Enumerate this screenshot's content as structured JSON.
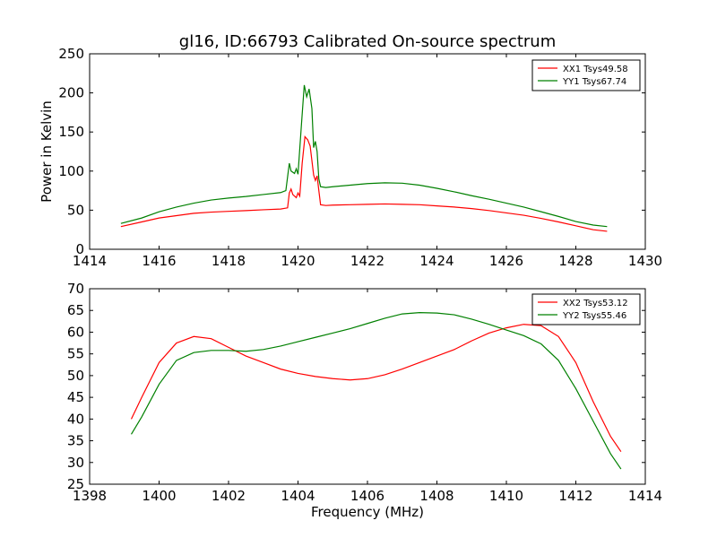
{
  "chart_data": [
    {
      "type": "line",
      "title": "gl16, ID:66793 Calibrated On-source spectrum",
      "xlabel": "",
      "ylabel": "Power in Kelvin",
      "xlim": [
        1414,
        1430
      ],
      "ylim": [
        0,
        250
      ],
      "xticks": [
        "1414",
        "1416",
        "1418",
        "1420",
        "1422",
        "1424",
        "1426",
        "1428",
        "1430"
      ],
      "yticks": [
        "0",
        "50",
        "100",
        "150",
        "200",
        "250"
      ],
      "grid": false,
      "legend_position": "top-right",
      "series": [
        {
          "name": "XX1 Tsys49.58",
          "color": "#ff0000",
          "points": [
            [
              1414.9,
              29
            ],
            [
              1415.5,
              35
            ],
            [
              1416,
              40
            ],
            [
              1416.5,
              43
            ],
            [
              1417,
              46
            ],
            [
              1417.5,
              47.5
            ],
            [
              1418,
              48.5
            ],
            [
              1418.5,
              49.5
            ],
            [
              1419,
              50.5
            ],
            [
              1419.5,
              51.5
            ],
            [
              1419.7,
              53
            ],
            [
              1419.75,
              72
            ],
            [
              1419.8,
              77
            ],
            [
              1419.85,
              70
            ],
            [
              1419.95,
              66
            ],
            [
              1420.0,
              72
            ],
            [
              1420.05,
              68
            ],
            [
              1420.12,
              110
            ],
            [
              1420.2,
              144
            ],
            [
              1420.28,
              140
            ],
            [
              1420.35,
              132
            ],
            [
              1420.45,
              95
            ],
            [
              1420.5,
              88
            ],
            [
              1420.55,
              94
            ],
            [
              1420.6,
              75
            ],
            [
              1420.65,
              57
            ],
            [
              1420.8,
              56
            ],
            [
              1421,
              56.5
            ],
            [
              1421.5,
              57
            ],
            [
              1422,
              57.5
            ],
            [
              1422.5,
              58
            ],
            [
              1423,
              57.5
            ],
            [
              1423.5,
              57
            ],
            [
              1424,
              55.5
            ],
            [
              1424.5,
              54
            ],
            [
              1425,
              52
            ],
            [
              1425.5,
              49.5
            ],
            [
              1426,
              46.5
            ],
            [
              1426.5,
              43.5
            ],
            [
              1427,
              39.5
            ],
            [
              1427.5,
              35
            ],
            [
              1428,
              30
            ],
            [
              1428.5,
              25
            ],
            [
              1428.9,
              23
            ]
          ]
        },
        {
          "name": "YY1 Tsys67.74",
          "color": "#008000",
          "points": [
            [
              1414.9,
              33
            ],
            [
              1415.5,
              40
            ],
            [
              1416,
              48
            ],
            [
              1416.5,
              54
            ],
            [
              1417,
              59
            ],
            [
              1417.5,
              63
            ],
            [
              1418,
              65.5
            ],
            [
              1418.5,
              67.5
            ],
            [
              1419,
              70
            ],
            [
              1419.5,
              72.5
            ],
            [
              1419.65,
              75
            ],
            [
              1419.75,
              110
            ],
            [
              1419.8,
              100
            ],
            [
              1419.9,
              97
            ],
            [
              1419.95,
              103
            ],
            [
              1420.0,
              96
            ],
            [
              1420.1,
              160
            ],
            [
              1420.18,
              210
            ],
            [
              1420.25,
              195
            ],
            [
              1420.32,
              205
            ],
            [
              1420.4,
              180
            ],
            [
              1420.45,
              130
            ],
            [
              1420.5,
              138
            ],
            [
              1420.55,
              125
            ],
            [
              1420.6,
              90
            ],
            [
              1420.65,
              80
            ],
            [
              1420.8,
              79
            ],
            [
              1421,
              80
            ],
            [
              1421.5,
              82
            ],
            [
              1422,
              84
            ],
            [
              1422.5,
              85
            ],
            [
              1423,
              84.5
            ],
            [
              1423.5,
              82
            ],
            [
              1424,
              78
            ],
            [
              1424.5,
              73.5
            ],
            [
              1425,
              68.5
            ],
            [
              1425.5,
              64
            ],
            [
              1426,
              59
            ],
            [
              1426.5,
              54
            ],
            [
              1427,
              48
            ],
            [
              1427.5,
              42
            ],
            [
              1428,
              35.5
            ],
            [
              1428.5,
              31
            ],
            [
              1428.9,
              29
            ]
          ]
        }
      ]
    },
    {
      "type": "line",
      "title": "",
      "xlabel": "Frequency (MHz)",
      "ylabel": "",
      "xlim": [
        1398,
        1414
      ],
      "ylim": [
        25,
        70
      ],
      "xticks": [
        "1398",
        "1400",
        "1402",
        "1404",
        "1406",
        "1408",
        "1410",
        "1412",
        "1414"
      ],
      "yticks": [
        "25",
        "30",
        "35",
        "40",
        "45",
        "50",
        "55",
        "60",
        "65",
        "70"
      ],
      "grid": false,
      "legend_position": "top-right",
      "series": [
        {
          "name": "XX2 Tsys53.12",
          "color": "#ff0000",
          "points": [
            [
              1399.2,
              40
            ],
            [
              1399.5,
              45
            ],
            [
              1400,
              53
            ],
            [
              1400.5,
              57.5
            ],
            [
              1401,
              59
            ],
            [
              1401.5,
              58.5
            ],
            [
              1402,
              56.5
            ],
            [
              1402.5,
              54.5
            ],
            [
              1403,
              53
            ],
            [
              1403.5,
              51.5
            ],
            [
              1404,
              50.5
            ],
            [
              1404.5,
              49.8
            ],
            [
              1405,
              49.3
            ],
            [
              1405.5,
              49
            ],
            [
              1406,
              49.3
            ],
            [
              1406.5,
              50.2
            ],
            [
              1407,
              51.5
            ],
            [
              1407.5,
              53
            ],
            [
              1408,
              54.5
            ],
            [
              1408.5,
              56
            ],
            [
              1409,
              58
            ],
            [
              1409.5,
              59.8
            ],
            [
              1410,
              61
            ],
            [
              1410.5,
              61.8
            ],
            [
              1411,
              61.5
            ],
            [
              1411.5,
              59
            ],
            [
              1412,
              53
            ],
            [
              1412.5,
              44
            ],
            [
              1413,
              36
            ],
            [
              1413.3,
              32.5
            ]
          ]
        },
        {
          "name": "YY2 Tsys55.46",
          "color": "#008000",
          "points": [
            [
              1399.2,
              36.5
            ],
            [
              1399.5,
              40.5
            ],
            [
              1400,
              48
            ],
            [
              1400.5,
              53.5
            ],
            [
              1401,
              55.3
            ],
            [
              1401.5,
              55.8
            ],
            [
              1402,
              55.8
            ],
            [
              1402.5,
              55.6
            ],
            [
              1403,
              56
            ],
            [
              1403.5,
              56.8
            ],
            [
              1404,
              57.8
            ],
            [
              1404.5,
              58.8
            ],
            [
              1405,
              59.8
            ],
            [
              1405.5,
              60.8
            ],
            [
              1406,
              62
            ],
            [
              1406.5,
              63.2
            ],
            [
              1407,
              64.2
            ],
            [
              1407.5,
              64.5
            ],
            [
              1408,
              64.4
            ],
            [
              1408.5,
              64
            ],
            [
              1409,
              63
            ],
            [
              1409.5,
              61.8
            ],
            [
              1410,
              60.5
            ],
            [
              1410.5,
              59.2
            ],
            [
              1411,
              57.3
            ],
            [
              1411.5,
              53.5
            ],
            [
              1412,
              47
            ],
            [
              1412.5,
              39.5
            ],
            [
              1413,
              32
            ],
            [
              1413.3,
              28.5
            ]
          ]
        }
      ]
    }
  ]
}
